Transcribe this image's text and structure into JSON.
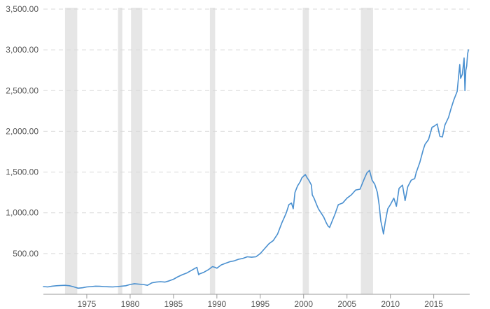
{
  "chart_data": {
    "type": "line",
    "title": "",
    "xlabel": "",
    "ylabel": "",
    "xlim": [
      1970.0,
      2018.5
    ],
    "ylim": [
      0,
      3500
    ],
    "y_ticks": [
      {
        "value": 500,
        "label": "500.00"
      },
      {
        "value": 1000,
        "label": "1,000.00"
      },
      {
        "value": 1500,
        "label": "1,500.00"
      },
      {
        "value": 2000,
        "label": "2,000.00"
      },
      {
        "value": 2500,
        "label": "2,500.00"
      },
      {
        "value": 3000,
        "label": "3,000.00"
      },
      {
        "value": 3500,
        "label": "3,500.00"
      }
    ],
    "x_ticks": [
      {
        "value": 1975,
        "label": "1975"
      },
      {
        "value": 1980,
        "label": "1980"
      },
      {
        "value": 1985,
        "label": "1985"
      },
      {
        "value": 1990,
        "label": "1990"
      },
      {
        "value": 1995,
        "label": "1995"
      },
      {
        "value": 2000,
        "label": "2000"
      },
      {
        "value": 2005,
        "label": "2005"
      },
      {
        "value": 2010,
        "label": "2010"
      },
      {
        "value": 2015,
        "label": "2015"
      }
    ],
    "grid": true,
    "shaded_periods": [
      {
        "start": 1972.5,
        "end": 1973.9
      },
      {
        "start": 1978.6,
        "end": 1979.1
      },
      {
        "start": 1980.1,
        "end": 1981.4
      },
      {
        "start": 1989.2,
        "end": 1989.8
      },
      {
        "start": 1999.9,
        "end": 2000.6
      },
      {
        "start": 2006.6,
        "end": 2008.0
      }
    ],
    "colors": {
      "line": "#4a90d0",
      "shade": "#e6e6e6",
      "grid": "#d9d9d9",
      "axis": "#999999",
      "tick_text": "#555555"
    },
    "series": [
      {
        "points": [
          [
            1970.0,
            95
          ],
          [
            1970.5,
            90
          ],
          [
            1971.0,
            100
          ],
          [
            1971.5,
            105
          ],
          [
            1972.0,
            108
          ],
          [
            1972.5,
            110
          ],
          [
            1973.0,
            105
          ],
          [
            1973.4,
            95
          ],
          [
            1973.7,
            85
          ],
          [
            1974.0,
            75
          ],
          [
            1974.5,
            80
          ],
          [
            1975.0,
            90
          ],
          [
            1975.5,
            95
          ],
          [
            1976.0,
            100
          ],
          [
            1976.5,
            98
          ],
          [
            1977.0,
            95
          ],
          [
            1977.5,
            92
          ],
          [
            1978.0,
            90
          ],
          [
            1978.5,
            95
          ],
          [
            1979.0,
            100
          ],
          [
            1979.5,
            105
          ],
          [
            1980.0,
            120
          ],
          [
            1980.5,
            130
          ],
          [
            1981.0,
            125
          ],
          [
            1981.5,
            120
          ],
          [
            1982.0,
            110
          ],
          [
            1982.5,
            140
          ],
          [
            1983.0,
            150
          ],
          [
            1983.5,
            155
          ],
          [
            1984.0,
            150
          ],
          [
            1984.5,
            165
          ],
          [
            1985.0,
            185
          ],
          [
            1985.5,
            215
          ],
          [
            1986.0,
            240
          ],
          [
            1986.5,
            260
          ],
          [
            1987.0,
            290
          ],
          [
            1987.5,
            320
          ],
          [
            1987.7,
            330
          ],
          [
            1987.9,
            240
          ],
          [
            1988.0,
            250
          ],
          [
            1988.5,
            270
          ],
          [
            1989.0,
            300
          ],
          [
            1989.5,
            340
          ],
          [
            1989.8,
            330
          ],
          [
            1990.0,
            320
          ],
          [
            1990.5,
            360
          ],
          [
            1991.0,
            380
          ],
          [
            1991.5,
            400
          ],
          [
            1992.0,
            410
          ],
          [
            1992.5,
            430
          ],
          [
            1993.0,
            440
          ],
          [
            1993.5,
            460
          ],
          [
            1994.0,
            455
          ],
          [
            1994.5,
            460
          ],
          [
            1995.0,
            500
          ],
          [
            1995.5,
            560
          ],
          [
            1996.0,
            620
          ],
          [
            1996.5,
            660
          ],
          [
            1997.0,
            740
          ],
          [
            1997.5,
            880
          ],
          [
            1997.8,
            950
          ],
          [
            1998.0,
            1000
          ],
          [
            1998.3,
            1100
          ],
          [
            1998.6,
            1120
          ],
          [
            1998.8,
            1050
          ],
          [
            1999.0,
            1250
          ],
          [
            1999.3,
            1330
          ],
          [
            1999.6,
            1380
          ],
          [
            1999.8,
            1430
          ],
          [
            2000.0,
            1450
          ],
          [
            2000.2,
            1470
          ],
          [
            2000.4,
            1430
          ],
          [
            2000.6,
            1400
          ],
          [
            2000.9,
            1340
          ],
          [
            2001.0,
            1220
          ],
          [
            2001.2,
            1180
          ],
          [
            2001.5,
            1100
          ],
          [
            2001.7,
            1050
          ],
          [
            2002.0,
            1000
          ],
          [
            2002.3,
            950
          ],
          [
            2002.6,
            880
          ],
          [
            2002.8,
            840
          ],
          [
            2003.0,
            820
          ],
          [
            2003.3,
            900
          ],
          [
            2003.6,
            980
          ],
          [
            2004.0,
            1100
          ],
          [
            2004.5,
            1120
          ],
          [
            2005.0,
            1180
          ],
          [
            2005.5,
            1220
          ],
          [
            2006.0,
            1280
          ],
          [
            2006.5,
            1290
          ],
          [
            2007.0,
            1420
          ],
          [
            2007.3,
            1490
          ],
          [
            2007.6,
            1520
          ],
          [
            2007.9,
            1400
          ],
          [
            2008.2,
            1350
          ],
          [
            2008.5,
            1250
          ],
          [
            2008.7,
            1100
          ],
          [
            2008.9,
            900
          ],
          [
            2009.1,
            800
          ],
          [
            2009.2,
            740
          ],
          [
            2009.4,
            880
          ],
          [
            2009.7,
            1050
          ],
          [
            2010.0,
            1100
          ],
          [
            2010.4,
            1180
          ],
          [
            2010.7,
            1080
          ],
          [
            2011.0,
            1300
          ],
          [
            2011.4,
            1340
          ],
          [
            2011.7,
            1150
          ],
          [
            2012.0,
            1320
          ],
          [
            2012.4,
            1400
          ],
          [
            2012.8,
            1420
          ],
          [
            2013.0,
            1500
          ],
          [
            2013.4,
            1620
          ],
          [
            2013.8,
            1780
          ],
          [
            2014.0,
            1840
          ],
          [
            2014.4,
            1900
          ],
          [
            2014.8,
            2050
          ],
          [
            2015.0,
            2060
          ],
          [
            2015.4,
            2090
          ],
          [
            2015.7,
            1940
          ],
          [
            2016.0,
            1930
          ],
          [
            2016.3,
            2080
          ],
          [
            2016.7,
            2170
          ],
          [
            2017.0,
            2280
          ],
          [
            2017.3,
            2380
          ],
          [
            2017.7,
            2490
          ],
          [
            2018.0,
            2820
          ],
          [
            2018.1,
            2650
          ],
          [
            2018.3,
            2700
          ],
          [
            2018.5,
            2900
          ],
          [
            2018.6,
            2500
          ],
          [
            2018.7,
            2750
          ],
          [
            2018.8,
            2800
          ],
          [
            2018.9,
            2950
          ],
          [
            2019.0,
            3000
          ]
        ]
      }
    ]
  }
}
